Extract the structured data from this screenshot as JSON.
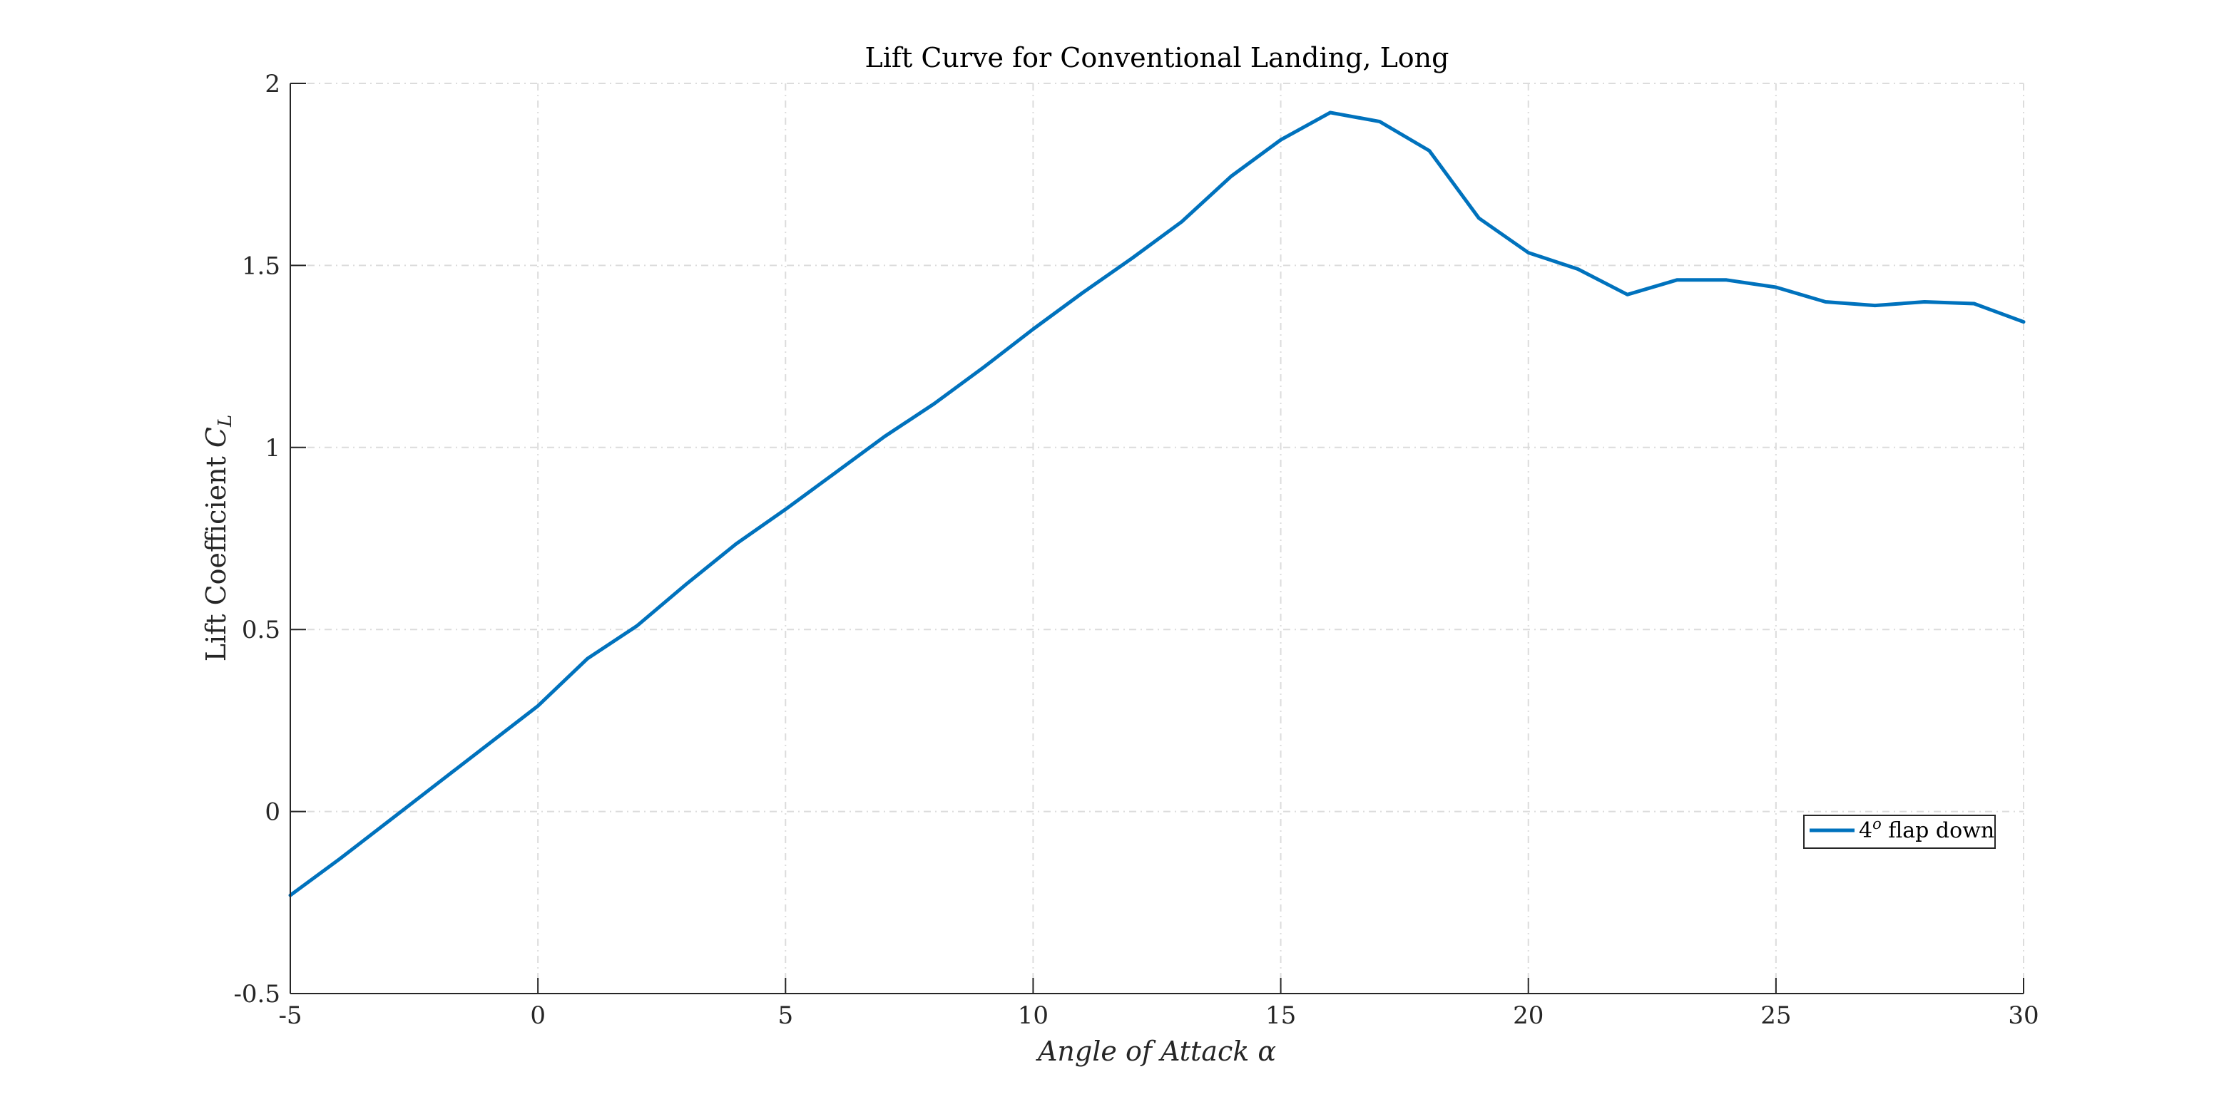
{
  "chart_data": {
    "type": "line",
    "title": "Lift Curve for Conventional Landing, Long",
    "xlabel": "Angle of Attack α",
    "ylabel_text": "Lift Coefficient ",
    "ylabel_symbol": "C",
    "ylabel_subscript": "L",
    "xlim": [
      -5,
      30
    ],
    "ylim": [
      -0.5,
      2
    ],
    "xticks": [
      -5,
      0,
      5,
      10,
      15,
      20,
      25,
      30
    ],
    "xtick_labels": [
      "-5",
      "0",
      "5",
      "10",
      "15",
      "20",
      "25",
      "30"
    ],
    "yticks": [
      -0.5,
      0,
      0.5,
      1,
      1.5,
      2
    ],
    "ytick_labels": [
      "-0.5",
      "0",
      "0.5",
      "1",
      "1.5",
      "2"
    ],
    "grid": true,
    "legend_position": "lower-right",
    "series": [
      {
        "name": "4° flap down",
        "legend_base": "4",
        "legend_sup": "o",
        "legend_rest": " flap down",
        "color": "#0072BD",
        "x": [
          -5,
          -4,
          -3,
          -2,
          -1,
          0,
          1,
          2,
          3,
          4,
          5,
          6,
          7,
          8,
          9,
          10,
          11,
          12,
          13,
          14,
          15,
          16,
          17,
          18,
          19,
          20,
          21,
          22,
          23,
          24,
          25,
          26,
          27,
          28,
          29,
          30
        ],
        "y": [
          -0.23,
          -0.13,
          -0.025,
          0.08,
          0.185,
          0.29,
          0.42,
          0.51,
          0.625,
          0.735,
          0.83,
          0.93,
          1.03,
          1.12,
          1.22,
          1.325,
          1.425,
          1.52,
          1.62,
          1.745,
          1.845,
          1.92,
          1.895,
          1.815,
          1.63,
          1.535,
          1.49,
          1.42,
          1.46,
          1.46,
          1.44,
          1.4,
          1.39,
          1.4,
          1.395,
          1.345
        ]
      }
    ]
  }
}
